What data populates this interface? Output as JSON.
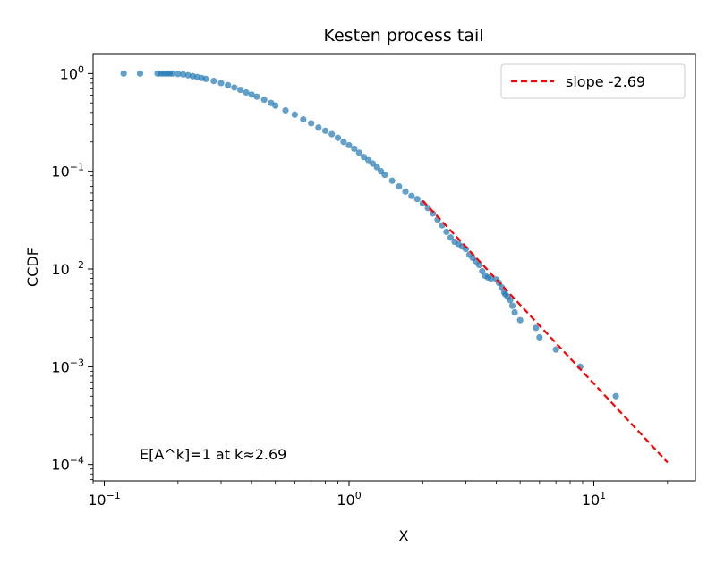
{
  "chart_data": {
    "type": "scatter",
    "title": "Kesten process tail",
    "xlabel": "X",
    "ylabel": "CCDF",
    "xscale": "log",
    "yscale": "log",
    "xlim": [
      0.09,
      26
    ],
    "ylim": [
      6.8e-05,
      1.6
    ],
    "x_ticks": [
      {
        "value": 0.1,
        "base": "10",
        "exp": "−1"
      },
      {
        "value": 1,
        "base": "10",
        "exp": "0"
      },
      {
        "value": 10,
        "base": "10",
        "exp": "1"
      }
    ],
    "y_ticks": [
      {
        "value": 0.0001,
        "base": "10",
        "exp": "−4"
      },
      {
        "value": 0.001,
        "base": "10",
        "exp": "−3"
      },
      {
        "value": 0.01,
        "base": "10",
        "exp": "−2"
      },
      {
        "value": 0.1,
        "base": "10",
        "exp": "−1"
      },
      {
        "value": 1,
        "base": "10",
        "exp": "0"
      }
    ],
    "grid": false,
    "legend": {
      "placement": "top-right"
    },
    "points_color": "#1f77b4",
    "fit_color": "#ff0000",
    "series": [
      {
        "name": "",
        "kind": "points",
        "x": [
          0.12,
          0.14,
          0.165,
          0.17,
          0.175,
          0.18,
          0.185,
          0.19,
          0.2,
          0.21,
          0.22,
          0.23,
          0.24,
          0.25,
          0.26,
          0.28,
          0.3,
          0.32,
          0.34,
          0.36,
          0.38,
          0.4,
          0.42,
          0.45,
          0.48,
          0.5,
          0.55,
          0.6,
          0.65,
          0.7,
          0.75,
          0.8,
          0.85,
          0.9,
          0.95,
          1.0,
          1.05,
          1.1,
          1.15,
          1.2,
          1.25,
          1.3,
          1.35,
          1.4,
          1.5,
          1.6,
          1.7,
          1.8,
          1.9,
          2.0,
          2.1,
          2.2,
          2.3,
          2.4,
          2.5,
          2.6,
          2.7,
          2.8,
          2.9,
          3.0,
          3.1,
          3.2,
          3.3,
          3.4,
          3.5,
          3.6,
          3.7,
          3.8,
          4.0,
          4.1,
          4.2,
          4.3,
          4.35,
          4.45,
          4.55,
          4.65,
          4.75,
          5.0,
          5.8,
          6.0,
          7.0,
          8.8,
          12.3
        ],
        "y": [
          1.0,
          1.0,
          1.0,
          1.0,
          1.0,
          1.0,
          1.0,
          1.0,
          0.99,
          0.98,
          0.96,
          0.94,
          0.92,
          0.9,
          0.88,
          0.84,
          0.8,
          0.76,
          0.72,
          0.68,
          0.64,
          0.61,
          0.58,
          0.54,
          0.5,
          0.47,
          0.42,
          0.38,
          0.34,
          0.31,
          0.28,
          0.26,
          0.24,
          0.22,
          0.2,
          0.185,
          0.17,
          0.155,
          0.14,
          0.13,
          0.12,
          0.11,
          0.1,
          0.092,
          0.08,
          0.07,
          0.062,
          0.056,
          0.052,
          0.047,
          0.042,
          0.037,
          0.032,
          0.028,
          0.024,
          0.021,
          0.019,
          0.018,
          0.017,
          0.016,
          0.014,
          0.013,
          0.012,
          0.011,
          0.0095,
          0.0085,
          0.0082,
          0.008,
          0.0078,
          0.0072,
          0.0065,
          0.0058,
          0.0055,
          0.0052,
          0.0048,
          0.0042,
          0.0036,
          0.003,
          0.0025,
          0.002,
          0.0015,
          0.001,
          0.0005
        ]
      },
      {
        "name": "slope -2.69",
        "kind": "dashed-line",
        "x": [
          2.0,
          20.0
        ],
        "y": [
          0.05,
          0.000105
        ]
      }
    ],
    "annotation": "E[A^k]=1 at k≈2.69"
  }
}
